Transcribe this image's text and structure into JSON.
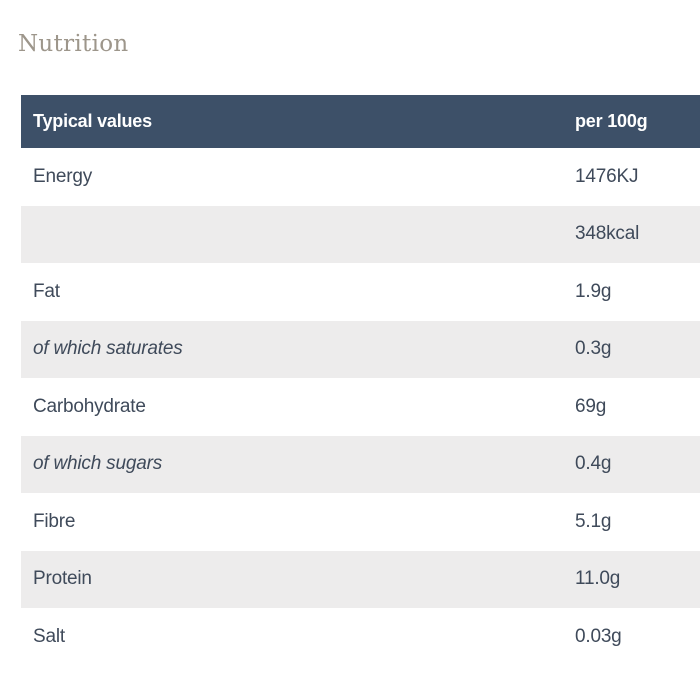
{
  "page": {
    "title": "Nutrition"
  },
  "table": {
    "header": {
      "label": "Typical values",
      "value": "per 100g"
    },
    "rows": [
      {
        "label": "Energy",
        "value": "1476KJ",
        "italic": false,
        "shaded": false
      },
      {
        "label": "",
        "value": "348kcal",
        "italic": false,
        "shaded": true
      },
      {
        "label": "Fat",
        "value": "1.9g",
        "italic": false,
        "shaded": false
      },
      {
        "label": "of which saturates",
        "value": "0.3g",
        "italic": true,
        "shaded": true
      },
      {
        "label": "Carbohydrate",
        "value": "69g",
        "italic": false,
        "shaded": false
      },
      {
        "label": "of which sugars",
        "value": "0.4g",
        "italic": true,
        "shaded": true
      },
      {
        "label": "Fibre",
        "value": "5.1g",
        "italic": false,
        "shaded": false
      },
      {
        "label": "Protein",
        "value": "11.0g",
        "italic": false,
        "shaded": true
      },
      {
        "label": "Salt",
        "value": "0.03g",
        "italic": false,
        "shaded": false
      }
    ]
  },
  "colors": {
    "header_bg": "#3d5068",
    "header_text": "#ffffff",
    "row_alt_bg": "#edecec",
    "row_bg": "#ffffff",
    "cell_text": "#3f4a5a",
    "title_text": "#9d968b",
    "page_bg": "#ffffff"
  }
}
